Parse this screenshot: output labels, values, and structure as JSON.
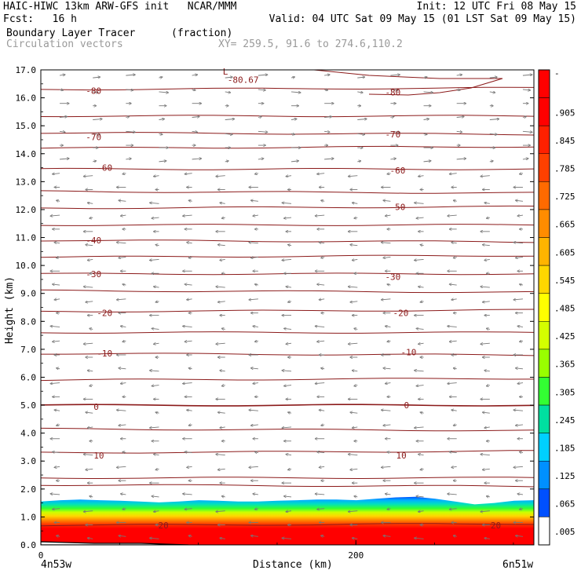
{
  "header": {
    "line1_left": "HAIC-HIWC 13km ARW-GFS init   NCAR/MMM",
    "line1_right": "Init: 12 UTC Fri 08 May 15",
    "line2_left": "Fcst:   16 h",
    "line2_right": "Valid: 04 UTC Sat 09 May 15 (01 LST Sat 09 May 15)",
    "line3_left": "Boundary Layer Tracer",
    "line3_units": "(fraction)",
    "line4_left": "Circulation vectors",
    "line4_xy": "XY= 259.5, 91.6 to 274.6,110.2"
  },
  "chart_data": {
    "type": "heatmap",
    "title": "Boundary Layer Tracer",
    "units": "(fraction)",
    "xlabel": "Distance (km)",
    "ylabel": "Height (km)",
    "xlim": [
      0,
      313
    ],
    "ylim": [
      0,
      17
    ],
    "x_ticks": [
      0,
      200
    ],
    "x_tick_labels": [
      "0",
      "200"
    ],
    "x_endpoint_labels": [
      "4n53w",
      "6n51w"
    ],
    "y_ticks": [
      0,
      1,
      2,
      3,
      4,
      5,
      6,
      7,
      8,
      9,
      10,
      11,
      12,
      13,
      14,
      15,
      16,
      17
    ],
    "y_tick_labels": [
      "0.0",
      "1.0",
      "2.0",
      "3.0",
      "4.0",
      "5.0",
      "6.0",
      "7.0",
      "8.0",
      "9.0",
      "10.0",
      "11.0",
      "12.0",
      "13.0",
      "14.0",
      "15.0",
      "16.0",
      "17.0"
    ],
    "colorbar_labels": [
      "-",
      ".905",
      ".845",
      ".785",
      ".725",
      ".665",
      ".605",
      ".545",
      ".485",
      ".425",
      ".365",
      ".305",
      ".245",
      ".185",
      ".125",
      ".065",
      ".005"
    ],
    "colorbar_colors": [
      "#ff0000",
      "#ff0000",
      "#ff2000",
      "#ff4000",
      "#ff6a00",
      "#ff8c00",
      "#ffb400",
      "#ffd700",
      "#ffff00",
      "#d4ff00",
      "#99ff00",
      "#33ff33",
      "#00e0a0",
      "#00d0ff",
      "#0090ff",
      "#0050ff",
      "#ffffff"
    ],
    "tracer_top_km": [
      1.55,
      1.6,
      1.62,
      1.6,
      1.58,
      1.55,
      1.52,
      1.55,
      1.6,
      1.58,
      1.55,
      1.55,
      1.58,
      1.6,
      1.62,
      1.62,
      1.6,
      1.65,
      1.7,
      1.72,
      1.65,
      1.55,
      1.45,
      1.5,
      1.58,
      1.6
    ],
    "temperature_contour_labels": [
      {
        "label": "-80.67",
        "x": 125,
        "y": 16.65
      },
      {
        "label": "L",
        "x": 122,
        "y": 16.95
      },
      {
        "label": "-80",
        "x": 35,
        "y": 16.25
      },
      {
        "label": "-80",
        "x": 225,
        "y": 16.2
      },
      {
        "label": "-70",
        "x": 35,
        "y": 14.6
      },
      {
        "label": "-70",
        "x": 225,
        "y": 14.7
      },
      {
        "label": "-60",
        "x": 42,
        "y": 13.5
      },
      {
        "label": "-60",
        "x": 228,
        "y": 13.4
      },
      {
        "label": "-50",
        "x": 228,
        "y": 12.1
      },
      {
        "label": "-40",
        "x": 35,
        "y": 10.9
      },
      {
        "label": "-30",
        "x": 35,
        "y": 9.7
      },
      {
        "label": "-30",
        "x": 225,
        "y": 9.6
      },
      {
        "label": "-20",
        "x": 42,
        "y": 8.3
      },
      {
        "label": "-20",
        "x": 230,
        "y": 8.3
      },
      {
        "label": "-10",
        "x": 42,
        "y": 6.85
      },
      {
        "label": "-10",
        "x": 235,
        "y": 6.9
      },
      {
        "label": "0",
        "x": 40,
        "y": 4.95
      },
      {
        "label": "0",
        "x": 237,
        "y": 5.0
      },
      {
        "label": "10",
        "x": 40,
        "y": 3.2
      },
      {
        "label": "10",
        "x": 232,
        "y": 3.2
      },
      {
        "label": "20",
        "x": 81,
        "y": 0.7
      },
      {
        "label": "20",
        "x": 292,
        "y": 0.7
      }
    ],
    "contour_line_levels_km": [
      16.3,
      15.35,
      14.75,
      14.2,
      13.45,
      12.65,
      12.05,
      11.45,
      10.9,
      10.3,
      9.7,
      9.1,
      8.35,
      7.6,
      6.85,
      5.9,
      5.0,
      4.15,
      3.3,
      2.4,
      2.15,
      0.7
    ],
    "wind_vectors_upper_direction": "eastward",
    "wind_vectors_lower_direction": "westward"
  }
}
